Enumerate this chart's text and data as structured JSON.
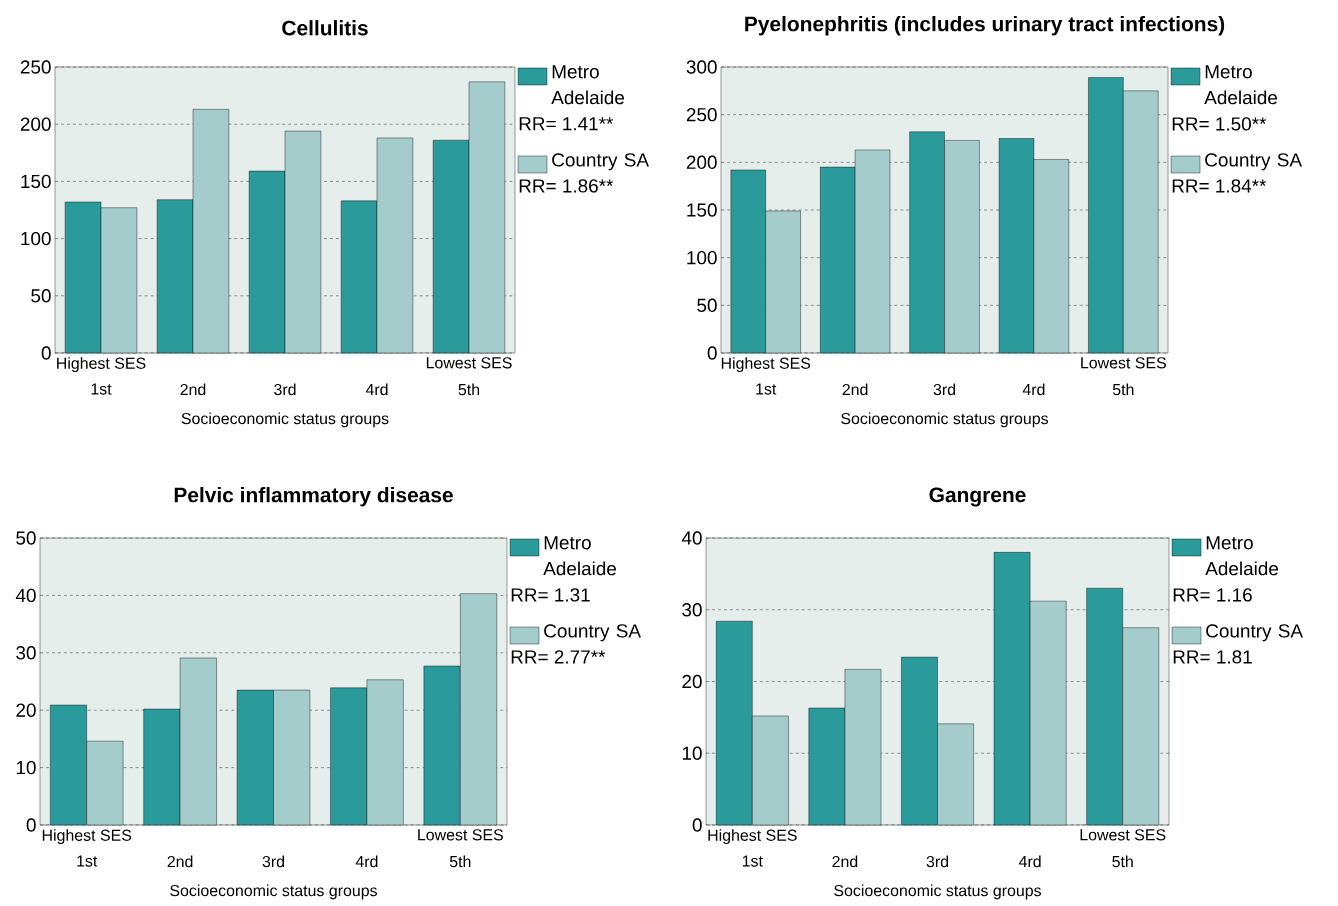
{
  "chart_data": [
    {
      "type": "bar",
      "title": "Cellulitis",
      "xlabel": "Socioeconomic status groups",
      "categories": [
        "1st",
        "2nd",
        "3rd",
        "4rd",
        "5th"
      ],
      "series": [
        {
          "name": "Metro Adelaide",
          "color": "#2a9a9a",
          "values": [
            132,
            134,
            159,
            133,
            186
          ]
        },
        {
          "name": "Country SA",
          "color": "#a3cccb",
          "values": [
            127,
            213,
            194,
            188,
            237
          ]
        }
      ],
      "ylim": [
        0,
        250
      ],
      "yticks": [
        0,
        50,
        100,
        150,
        200,
        250
      ],
      "grid": "y",
      "legend": "right",
      "annotations": [
        "Highest SES",
        "Lowest SES",
        "RR= 1.41**",
        "RR= 1.86**"
      ]
    },
    {
      "type": "bar",
      "title": "Pyelonephritis (includes urinary tract infections)",
      "xlabel": "Socioeconomic status groups",
      "categories": [
        "1st",
        "2nd",
        "3rd",
        "4rd",
        "5th"
      ],
      "series": [
        {
          "name": "Metro Adelaide",
          "color": "#2a9a9a",
          "values": [
            192,
            195,
            232,
            225,
            289
          ]
        },
        {
          "name": "Country SA",
          "color": "#a3cccb",
          "values": [
            149,
            213,
            223,
            203,
            275
          ]
        }
      ],
      "ylim": [
        0,
        300
      ],
      "yticks": [
        0,
        50,
        100,
        150,
        200,
        250,
        300
      ],
      "grid": "y",
      "legend": "right",
      "annotations": [
        "Highest SES",
        "Lowest SES",
        "RR= 1.50**",
        "RR= 1.84**"
      ]
    },
    {
      "type": "bar",
      "title": "Pelvic inflammatory disease",
      "xlabel": "Socioeconomic status groups",
      "categories": [
        "1st",
        "2nd",
        "3rd",
        "4rd",
        "5th"
      ],
      "series": [
        {
          "name": "Metro Adelaide",
          "color": "#2a9a9a",
          "values": [
            20.9,
            20.2,
            23.5,
            23.9,
            27.7
          ]
        },
        {
          "name": "Country SA",
          "color": "#a3cccb",
          "values": [
            14.6,
            29.1,
            23.5,
            25.3,
            40.3
          ]
        }
      ],
      "ylim": [
        0,
        50
      ],
      "yticks": [
        0,
        10,
        20,
        30,
        40,
        50
      ],
      "grid": "y",
      "legend": "right",
      "annotations": [
        "Highest SES",
        "Lowest SES",
        "RR= 1.31",
        "RR= 2.77**"
      ]
    },
    {
      "type": "bar",
      "title": "Gangrene",
      "xlabel": "Socioeconomic status groups",
      "categories": [
        "1st",
        "2nd",
        "3rd",
        "4rd",
        "5th"
      ],
      "series": [
        {
          "name": "Metro Adelaide",
          "color": "#2a9a9a",
          "values": [
            28.4,
            16.3,
            23.4,
            38.0,
            33.0
          ]
        },
        {
          "name": "Country SA",
          "color": "#a3cccb",
          "values": [
            15.2,
            21.7,
            14.1,
            31.2,
            27.5
          ]
        }
      ],
      "ylim": [
        0,
        40
      ],
      "yticks": [
        0,
        10,
        20,
        30,
        40
      ],
      "grid": "y",
      "legend": "right",
      "annotations": [
        "Highest SES",
        "Lowest SES",
        "RR= 1.16",
        "RR= 1.81"
      ]
    }
  ]
}
